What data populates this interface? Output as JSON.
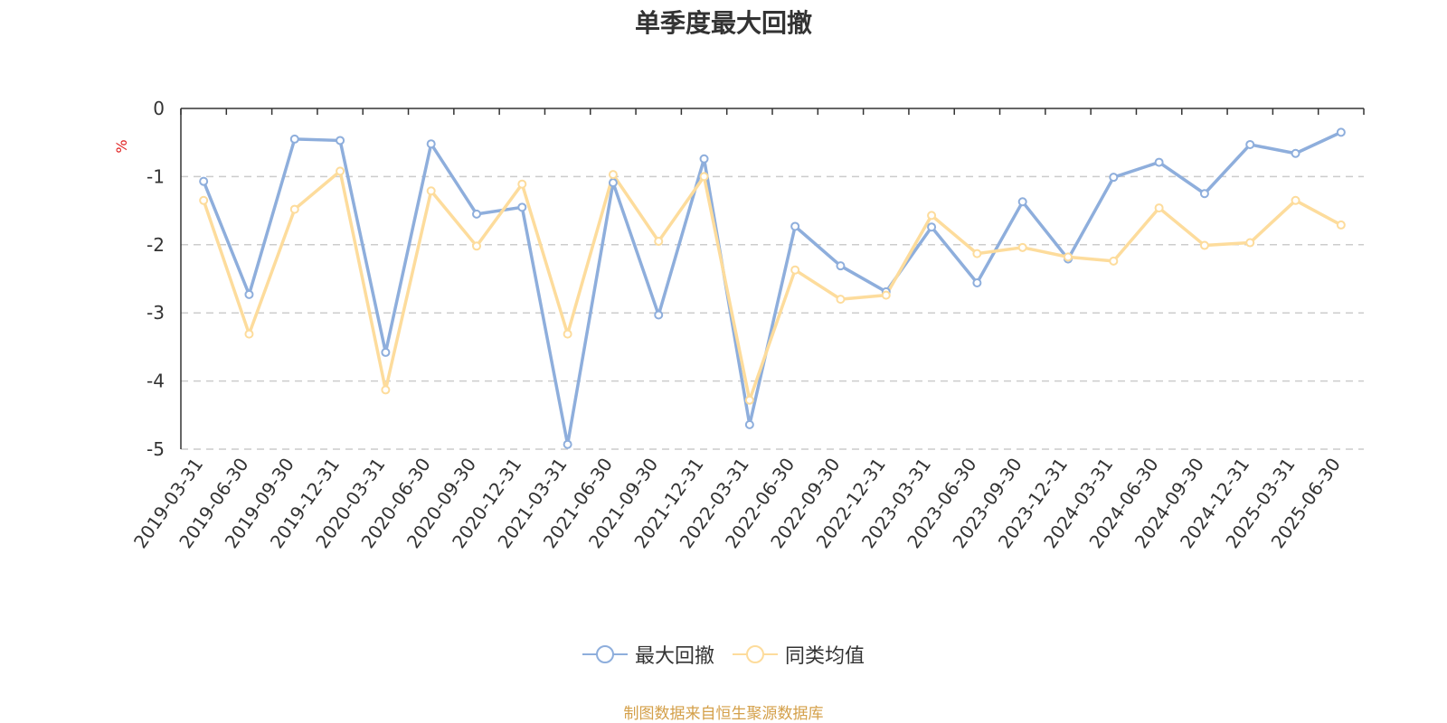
{
  "chart_data": {
    "type": "line",
    "title": "单季度最大回撤",
    "ylabel": "%",
    "ylim": [
      -5,
      0
    ],
    "yticks": [
      0,
      -1,
      -2,
      -3,
      -4,
      -5
    ],
    "grid": true,
    "legend_position": "bottom-center",
    "categories": [
      "2019-03-31",
      "2019-06-30",
      "2019-09-30",
      "2019-12-31",
      "2020-03-31",
      "2020-06-30",
      "2020-09-30",
      "2020-12-31",
      "2021-03-31",
      "2021-06-30",
      "2021-09-30",
      "2021-12-31",
      "2022-03-31",
      "2022-06-30",
      "2022-09-30",
      "2022-12-31",
      "2023-03-31",
      "2023-06-30",
      "2023-09-30",
      "2023-12-31",
      "2024-03-31",
      "2024-06-30",
      "2024-09-30",
      "2024-12-31",
      "2025-03-31",
      "2025-06-30"
    ],
    "series": [
      {
        "name": "最大回撤",
        "color": "#8eaedc",
        "values": [
          -1.07,
          -2.73,
          -0.45,
          -0.47,
          -3.58,
          -0.52,
          -1.55,
          -1.45,
          -4.93,
          -1.09,
          -3.03,
          -0.74,
          -4.64,
          -1.73,
          -2.31,
          -2.69,
          -1.74,
          -2.56,
          -1.37,
          -2.21,
          -1.01,
          -0.79,
          -1.25,
          -0.53,
          -0.66,
          -0.35
        ]
      },
      {
        "name": "同类均值",
        "color": "#fddc9c",
        "values": [
          -1.35,
          -3.31,
          -1.48,
          -0.92,
          -4.13,
          -1.21,
          -2.02,
          -1.11,
          -3.31,
          -0.97,
          -1.95,
          -1.0,
          -4.28,
          -2.37,
          -2.8,
          -2.74,
          -1.57,
          -2.13,
          -2.04,
          -2.18,
          -2.24,
          -1.46,
          -2.01,
          -1.97,
          -1.35,
          -1.71
        ]
      }
    ]
  },
  "colors": {
    "axis": "#333333",
    "grid": "#cccccc",
    "unit_label": "#e02020",
    "source": "#d4a04a"
  },
  "source_text": "制图数据来自恒生聚源数据库"
}
